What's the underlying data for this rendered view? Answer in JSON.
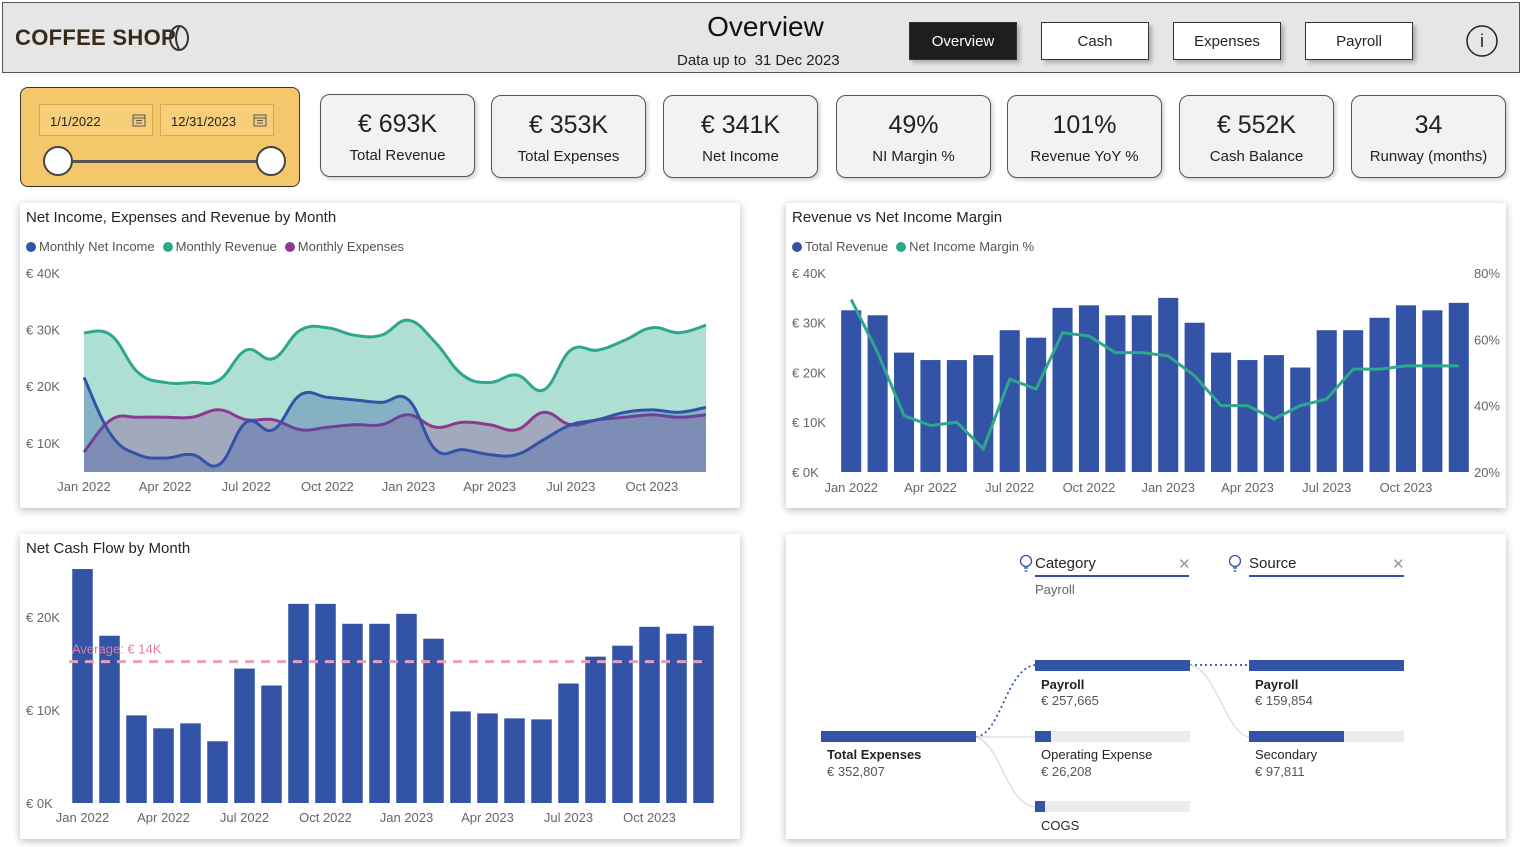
{
  "header": {
    "brand": "COFFEE SHOP",
    "title": "Overview",
    "data_up_to_label": "Data up to",
    "data_up_to_date": "31 Dec 2023",
    "nav": [
      {
        "label": "Overview",
        "active": true
      },
      {
        "label": "Cash",
        "active": false
      },
      {
        "label": "Expenses",
        "active": false
      },
      {
        "label": "Payroll",
        "active": false
      }
    ],
    "info_label": "i"
  },
  "date_filter": {
    "start": "1/1/2022",
    "end": "12/31/2023"
  },
  "kpis": [
    {
      "value": "€ 693K",
      "label": "Total Revenue"
    },
    {
      "value": "€ 353K",
      "label": "Total Expenses"
    },
    {
      "value": "€ 341K",
      "label": "Net Income"
    },
    {
      "value": "49%",
      "label": "NI Margin %"
    },
    {
      "value": "101%",
      "label": "Revenue YoY %"
    },
    {
      "value": "€ 552K",
      "label": "Cash Balance"
    },
    {
      "value": "34",
      "label": "Runway (months)"
    }
  ],
  "colors": {
    "net_income": "#3253a6",
    "revenue": "#2ea88c",
    "expenses": "#8b3a8f",
    "bar": "#3253a6",
    "margin_line": "#2ea88c",
    "average": "#e57a9a",
    "date_panel": "#f5c76b"
  },
  "chart_data": [
    {
      "type": "area",
      "title": "Net Income, Expenses and Revenue by Month",
      "legend": [
        "Monthly Net Income",
        "Monthly Revenue",
        "Monthly Expenses"
      ],
      "y_ticks": [
        "€ 40K",
        "€ 30K",
        "€ 20K",
        "€ 10K"
      ],
      "x_ticks": [
        "Jan 2022",
        "Apr 2022",
        "Jul 2022",
        "Oct 2022",
        "Jan 2023",
        "Apr 2023",
        "Jul 2023",
        "Oct 2023"
      ],
      "ylim": [
        0,
        40000
      ],
      "series": [
        {
          "name": "Monthly Revenue",
          "values": [
            28000,
            27500,
            20000,
            18000,
            18000,
            18500,
            24500,
            22800,
            28500,
            29000,
            27500,
            27500,
            30500,
            26000,
            19500,
            18000,
            19500,
            16500,
            24500,
            24500,
            26500,
            29000,
            28000,
            29500
          ]
        },
        {
          "name": "Monthly Expenses",
          "values": [
            4000,
            10500,
            11000,
            11000,
            11000,
            12500,
            10500,
            10500,
            8500,
            9000,
            9500,
            9500,
            11500,
            9000,
            10000,
            9500,
            8500,
            12000,
            9500,
            10500,
            11000,
            11500,
            11000,
            11500
          ]
        },
        {
          "name": "Monthly Net Income",
          "values": [
            19000,
            7500,
            3500,
            2800,
            3500,
            1500,
            10000,
            8500,
            15500,
            15000,
            14500,
            14000,
            14500,
            4500,
            4500,
            3500,
            3500,
            6500,
            9500,
            10500,
            12000,
            12500,
            12000,
            13000
          ]
        }
      ]
    },
    {
      "type": "bar",
      "title": "Revenue vs Net Income Margin",
      "legend": [
        "Total Revenue",
        "Net Income Margin %"
      ],
      "y_ticks": [
        "€ 40K",
        "€ 30K",
        "€ 20K",
        "€ 10K",
        "€ 0K"
      ],
      "y2_ticks": [
        "80%",
        "60%",
        "40%",
        "20%"
      ],
      "x_ticks": [
        "Jan 2022",
        "Apr 2022",
        "Jul 2022",
        "Oct 2022",
        "Jan 2023",
        "Apr 2023",
        "Jul 2023",
        "Oct 2023"
      ],
      "ylim": [
        0,
        40000
      ],
      "y2lim": [
        20,
        80
      ],
      "series": [
        {
          "name": "Total Revenue",
          "values": [
            32500,
            31500,
            24000,
            22500,
            22500,
            23500,
            28500,
            27000,
            33000,
            33500,
            31500,
            31500,
            35000,
            30000,
            24000,
            22500,
            23500,
            21000,
            28500,
            28500,
            31000,
            33500,
            32500,
            34000
          ]
        },
        {
          "name": "Net Income Margin %",
          "values": [
            72,
            56,
            37,
            34,
            35,
            27,
            48,
            45,
            62,
            61,
            56,
            56,
            55,
            49,
            40,
            40,
            36,
            40,
            42,
            51,
            51,
            52,
            52,
            52
          ]
        }
      ]
    },
    {
      "type": "bar",
      "title": "Net Cash Flow by Month",
      "y_ticks": [
        "€ 20K",
        "€ 10K",
        "€ 0K"
      ],
      "x_ticks": [
        "Jan 2022",
        "Apr 2022",
        "Jul 2022",
        "Oct 2022",
        "Jan 2023",
        "Apr 2023",
        "Jul 2023",
        "Oct 2023"
      ],
      "ylim": [
        0,
        23000
      ],
      "average": 14200,
      "average_label": "Average: € 14K",
      "series": [
        {
          "name": "",
          "values": [
            23500,
            16800,
            8800,
            7500,
            8000,
            6200,
            13500,
            11800,
            20000,
            20000,
            18000,
            18000,
            19000,
            16500,
            9200,
            9000,
            8500,
            8400,
            12000,
            14700,
            15800,
            17700,
            17000,
            17800
          ]
        }
      ]
    }
  ],
  "decomposition": {
    "headers": [
      {
        "label": "Category",
        "selected": "Payroll"
      },
      {
        "label": "Source",
        "selected": ""
      }
    ],
    "root": {
      "name": "Total Expenses",
      "value": "€ 352,807",
      "fraction": 1.0
    },
    "level1": [
      {
        "name": "Payroll",
        "value": "€ 257,665",
        "fraction": 1.0,
        "bold": true
      },
      {
        "name": "Operating Expense",
        "value": "€ 26,208",
        "fraction": 0.1
      },
      {
        "name": "COGS",
        "value": "",
        "fraction": 0.06
      }
    ],
    "level2": [
      {
        "name": "Payroll",
        "value": "€ 159,854",
        "fraction": 1.0,
        "bold": true
      },
      {
        "name": "Secondary",
        "value": "€ 97,811",
        "fraction": 0.61
      }
    ]
  }
}
